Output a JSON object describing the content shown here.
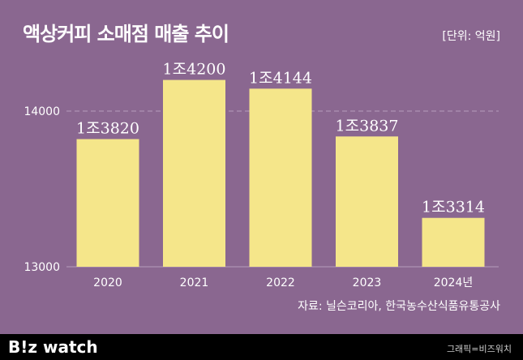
{
  "header": {
    "title": "액상커피 소매점 매출 추이",
    "unit": "[단위: 억원]"
  },
  "source": "자료: 닐슨코리아, 한국농수산식품유통공사",
  "footer": {
    "logo": "B!z watch",
    "credit": "그래픽=비즈워치"
  },
  "colors": {
    "background": "#8a6790",
    "bar": "#f5e68a",
    "gridline": "#b79cbc",
    "text": "#ffffff"
  },
  "chart_data": {
    "type": "bar",
    "categories": [
      "2020",
      "2021",
      "2022",
      "2023",
      "2024년"
    ],
    "values": [
      13820,
      14200,
      14144,
      13837,
      13314
    ],
    "data_labels": [
      "1조3820",
      "1조4200",
      "1조4144",
      "1조3837",
      "1조3314"
    ],
    "yticks": [
      13000,
      14000
    ],
    "ytick_labels": [
      "13000",
      "14000"
    ],
    "ylim": [
      13000,
      14300
    ],
    "grid": "dashed line at 14000"
  }
}
